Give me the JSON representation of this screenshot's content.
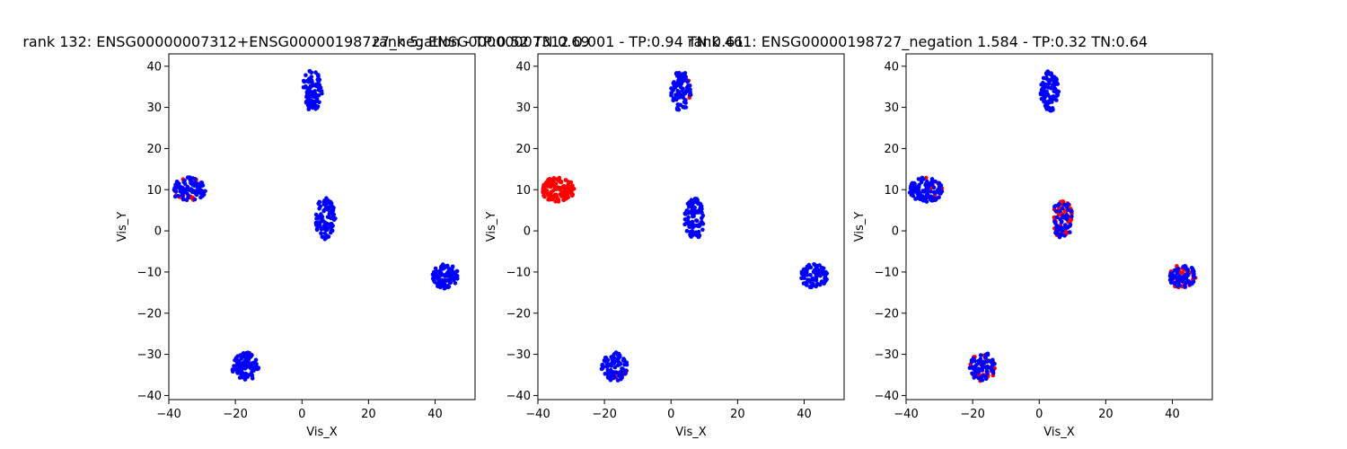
{
  "chart_data": [
    {
      "type": "scatter",
      "title": "rank 132: ENSG00000007312+ENSG00000198727_negation - TP:0.52 TN:0.69",
      "xlabel": "Vis_X",
      "ylabel": "Vis_Y",
      "xticks": [
        -40,
        -20,
        0,
        20,
        40
      ],
      "yticks": [
        -40,
        -30,
        -20,
        -10,
        0,
        10,
        20,
        30,
        40
      ],
      "xlim": [
        -40,
        52
      ],
      "ylim": [
        -41,
        43
      ],
      "clusters": [
        {
          "cx": 3,
          "cy": 34,
          "rx": 3,
          "ry": 5,
          "n": 90,
          "red_fraction": 0.0
        },
        {
          "cx": -34,
          "cy": 10,
          "rx": 5,
          "ry": 3,
          "n": 110,
          "red_fraction": 0.15
        },
        {
          "cx": 7,
          "cy": 3,
          "rx": 3,
          "ry": 5,
          "n": 100,
          "red_fraction": 0.0
        },
        {
          "cx": 43,
          "cy": -11,
          "rx": 4,
          "ry": 3,
          "n": 100,
          "red_fraction": 0.0
        },
        {
          "cx": -17,
          "cy": -33,
          "rx": 4,
          "ry": 3.5,
          "n": 100,
          "red_fraction": 0.02
        }
      ]
    },
    {
      "type": "scatter",
      "title": "rank 5: ENSG00000007312 0.001 - TP:0.94 TN:0.61",
      "xlabel": "Vis_X",
      "ylabel": "Vis_Y",
      "xticks": [
        -40,
        -20,
        0,
        20,
        40
      ],
      "yticks": [
        -40,
        -30,
        -20,
        -10,
        0,
        10,
        20,
        30,
        40
      ],
      "xlim": [
        -40,
        52
      ],
      "ylim": [
        -41,
        43
      ],
      "clusters": [
        {
          "cx": 3,
          "cy": 34,
          "rx": 3,
          "ry": 5,
          "n": 90,
          "red_fraction": 0.06
        },
        {
          "cx": -34,
          "cy": 10,
          "rx": 5,
          "ry": 3,
          "n": 110,
          "red_fraction": 1.0
        },
        {
          "cx": 7,
          "cy": 3,
          "rx": 3,
          "ry": 5,
          "n": 100,
          "red_fraction": 0.01
        },
        {
          "cx": 43,
          "cy": -11,
          "rx": 4,
          "ry": 3,
          "n": 100,
          "red_fraction": 0.0
        },
        {
          "cx": -17,
          "cy": -33,
          "rx": 4,
          "ry": 3.5,
          "n": 100,
          "red_fraction": 0.05
        }
      ]
    },
    {
      "type": "scatter",
      "title": "rank 461: ENSG00000198727_negation 1.584 - TP:0.32 TN:0.64",
      "xlabel": "Vis_X",
      "ylabel": "Vis_Y",
      "xticks": [
        -40,
        -20,
        0,
        20,
        40
      ],
      "yticks": [
        -40,
        -30,
        -20,
        -10,
        0,
        10,
        20,
        30,
        40
      ],
      "xlim": [
        -40,
        52
      ],
      "ylim": [
        -41,
        43
      ],
      "clusters": [
        {
          "cx": 3,
          "cy": 34,
          "rx": 3,
          "ry": 5,
          "n": 90,
          "red_fraction": 0.0
        },
        {
          "cx": -34,
          "cy": 10,
          "rx": 5,
          "ry": 3,
          "n": 110,
          "red_fraction": 0.12
        },
        {
          "cx": 7,
          "cy": 3,
          "rx": 3,
          "ry": 5,
          "n": 100,
          "red_fraction": 0.5
        },
        {
          "cx": 43,
          "cy": -11,
          "rx": 4,
          "ry": 3,
          "n": 100,
          "red_fraction": 0.35
        },
        {
          "cx": -17,
          "cy": -33,
          "rx": 4,
          "ry": 3.5,
          "n": 100,
          "red_fraction": 0.3
        }
      ]
    }
  ],
  "colors": {
    "positive": "#ff0000",
    "negative": "#0000ff",
    "axis": "#000000"
  }
}
